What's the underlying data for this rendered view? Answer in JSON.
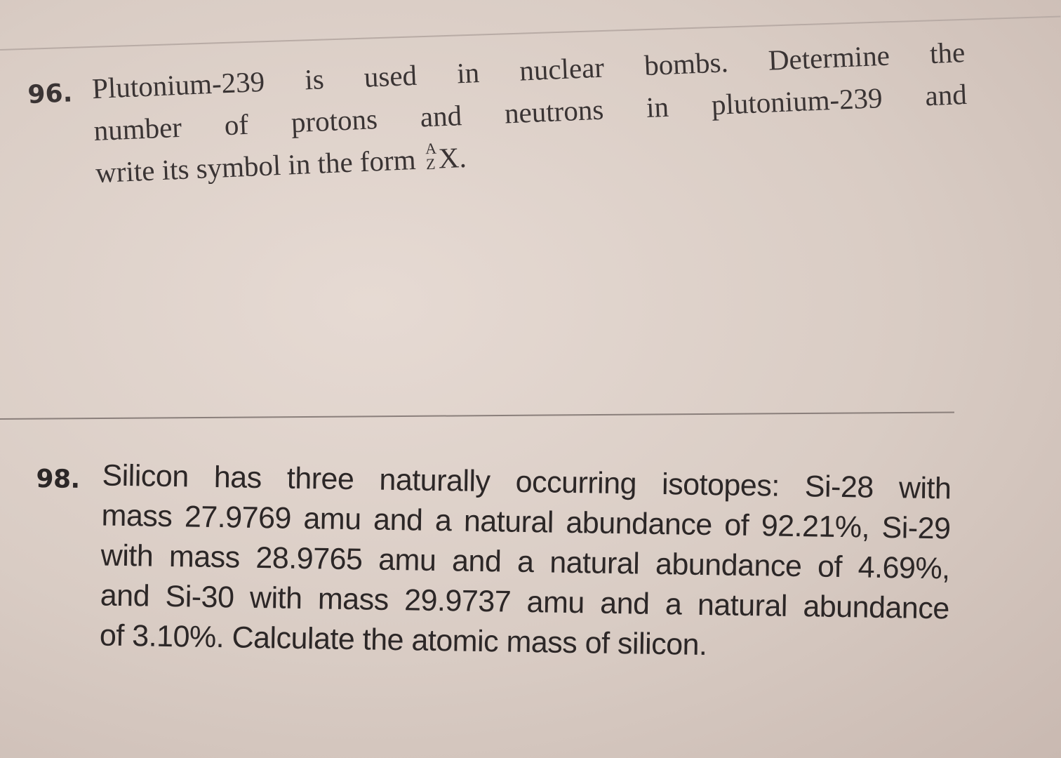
{
  "problems": [
    {
      "number": "96.",
      "lines": [
        "Plutonium-239 is used in nuclear bombs. Determine the",
        "number of protons and neutrons in plutonium-239 and",
        "write its symbol in the form"
      ],
      "symbol": {
        "mass": "A",
        "atomic": "Z",
        "element": "X."
      }
    },
    {
      "number": "98.",
      "lines": [
        "Silicon has three naturally occurring isotopes: Si-28 with",
        "mass 27.9769 amu and a natural abundance of 92.21%, Si-29",
        "with mass 28.9765 amu and a natural abundance of 4.69%,",
        "and Si-30 with mass 29.9737 amu and a natural abundance",
        "of 3.10%. Calculate the atomic mass of silicon."
      ]
    }
  ]
}
